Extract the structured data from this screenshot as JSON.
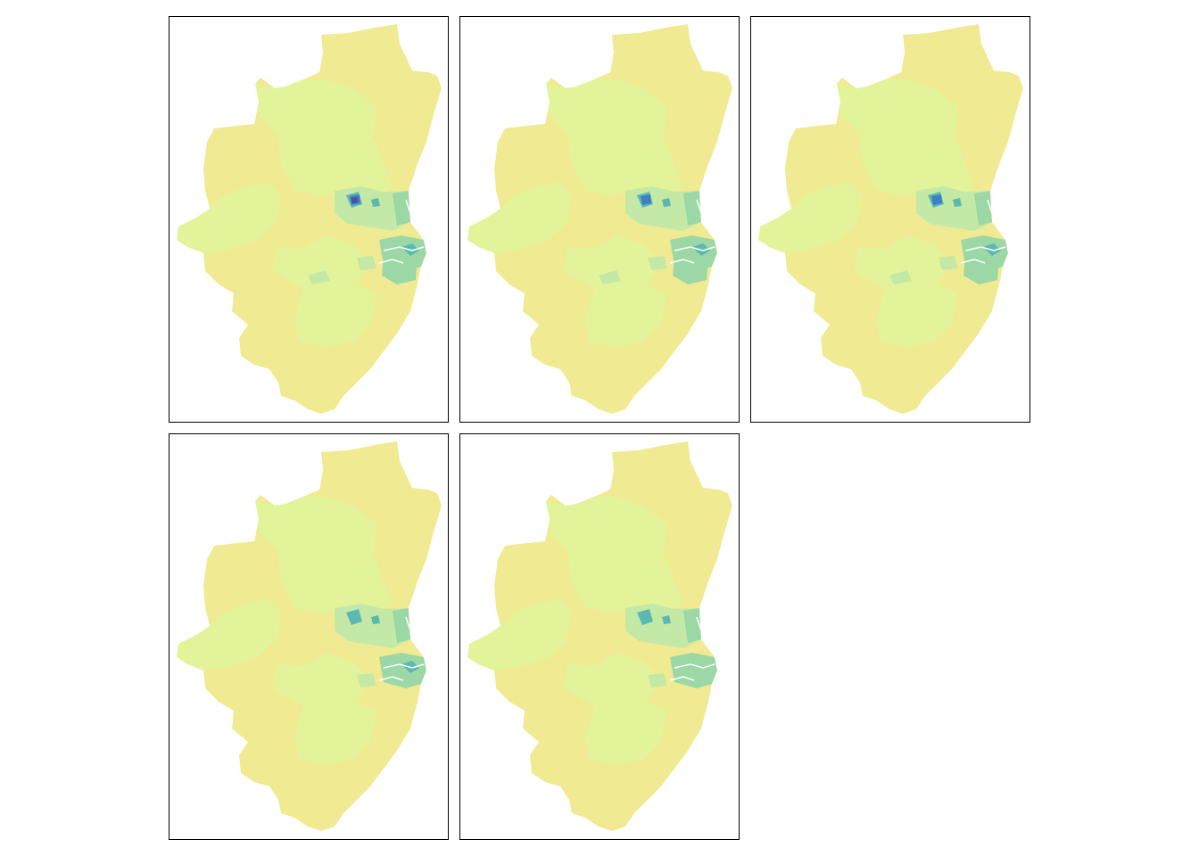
{
  "figure": {
    "panels": [
      {
        "id": "p1",
        "intensity": 1.0
      },
      {
        "id": "p2",
        "intensity": 0.85
      },
      {
        "id": "p3",
        "intensity": 0.75
      },
      {
        "id": "p4",
        "intensity": 0.6
      },
      {
        "id": "p5",
        "intensity": 0.5
      }
    ],
    "palette": {
      "base": "#F0EA92",
      "light": "#E3F39A",
      "mid_light": "#C4E9A6",
      "mid": "#9BD8A5",
      "teal": "#5CB9B0",
      "blue": "#3F7EC4",
      "dark_blue": "#4A4FB0",
      "river": "#ffffff"
    }
  }
}
